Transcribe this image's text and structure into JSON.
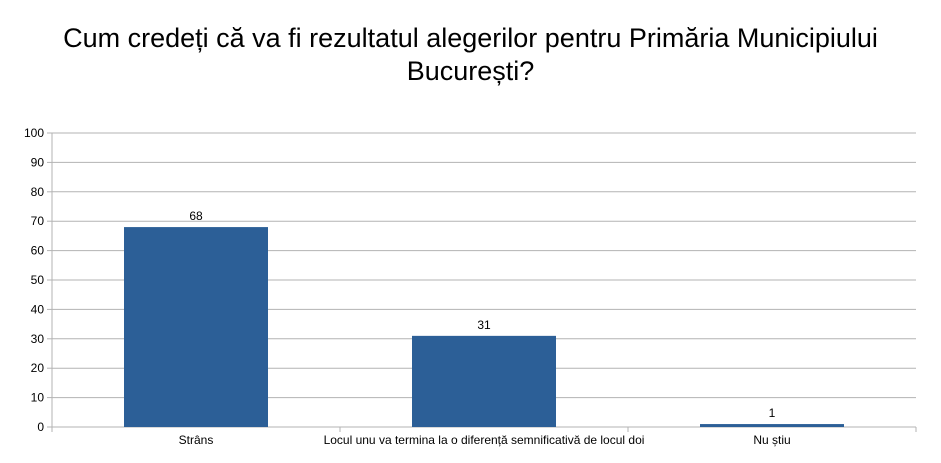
{
  "chart_data": {
    "type": "bar",
    "title": "Cum credeți că va fi rezultatul alegerilor pentru Primăria Municipiului București?",
    "categories": [
      "Strâns",
      "Locul unu va termina la o diferență semnificativă de locul doi",
      "Nu știu"
    ],
    "values": [
      68,
      31,
      1
    ],
    "ylim": [
      0,
      100
    ],
    "yticks": [
      0,
      10,
      20,
      30,
      40,
      50,
      60,
      70,
      80,
      90,
      100
    ],
    "grid": true,
    "legend": "none",
    "bar_color": "#2c5f97",
    "grid_color": "#b3b3b3"
  }
}
